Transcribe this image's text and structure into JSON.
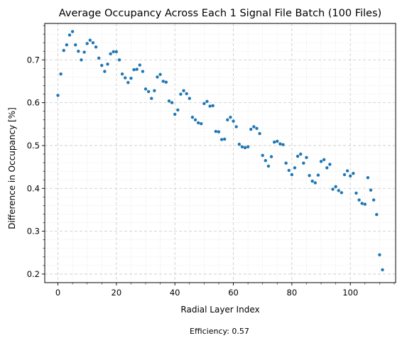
{
  "chart_data": {
    "type": "scatter",
    "title": "Average Occupancy Across Each 1 Signal File Batch (100 Files)",
    "xlabel": "Radial Layer Index",
    "ylabel": "Difference in Occupancy [%]",
    "annotation": "Efficiency: 0.57",
    "xlim": [
      -4.5,
      115.5
    ],
    "ylim": [
      0.18,
      0.785
    ],
    "xticks": [
      0,
      20,
      40,
      60,
      80,
      100
    ],
    "xtick_labels": [
      "0",
      "20",
      "40",
      "60",
      "80",
      "100"
    ],
    "yticks": [
      0.2,
      0.3,
      0.4,
      0.5,
      0.6,
      0.7
    ],
    "ytick_labels": [
      "0.2",
      "0.3",
      "0.4",
      "0.5",
      "0.6",
      "0.7"
    ],
    "grid": "major dashed, minor dotted",
    "marker_color": "#1f77b4",
    "x": [
      0,
      1,
      2,
      3,
      4,
      5,
      6,
      7,
      8,
      9,
      10,
      11,
      12,
      13,
      14,
      15,
      16,
      17,
      18,
      19,
      20,
      21,
      22,
      23,
      24,
      25,
      26,
      27,
      28,
      29,
      30,
      31,
      32,
      33,
      34,
      35,
      36,
      37,
      38,
      39,
      40,
      41,
      42,
      43,
      44,
      45,
      46,
      47,
      48,
      49,
      50,
      51,
      52,
      53,
      54,
      55,
      56,
      57,
      58,
      59,
      60,
      61,
      62,
      63,
      64,
      65,
      66,
      67,
      68,
      69,
      70,
      71,
      72,
      73,
      74,
      75,
      76,
      77,
      78,
      79,
      80,
      81,
      82,
      83,
      84,
      85,
      86,
      87,
      88,
      89,
      90,
      91,
      92,
      93,
      94,
      95,
      96,
      97,
      98,
      99,
      100,
      101,
      102,
      103,
      104,
      105,
      106,
      107,
      108,
      109,
      110,
      111
    ],
    "y": [
      0.617,
      0.667,
      0.722,
      0.735,
      0.758,
      0.766,
      0.735,
      0.72,
      0.7,
      0.718,
      0.738,
      0.746,
      0.74,
      0.73,
      0.704,
      0.687,
      0.673,
      0.69,
      0.714,
      0.719,
      0.719,
      0.7,
      0.667,
      0.658,
      0.647,
      0.657,
      0.677,
      0.678,
      0.688,
      0.673,
      0.632,
      0.626,
      0.61,
      0.628,
      0.66,
      0.666,
      0.65,
      0.648,
      0.604,
      0.6,
      0.573,
      0.583,
      0.62,
      0.628,
      0.621,
      0.61,
      0.566,
      0.56,
      0.553,
      0.551,
      0.598,
      0.603,
      0.592,
      0.593,
      0.533,
      0.532,
      0.514,
      0.515,
      0.56,
      0.566,
      0.557,
      0.544,
      0.503,
      0.497,
      0.495,
      0.497,
      0.538,
      0.544,
      0.54,
      0.528,
      0.477,
      0.465,
      0.452,
      0.474,
      0.508,
      0.51,
      0.504,
      0.502,
      0.459,
      0.442,
      0.432,
      0.448,
      0.475,
      0.48,
      0.459,
      0.472,
      0.43,
      0.417,
      0.413,
      0.431,
      0.463,
      0.467,
      0.448,
      0.456,
      0.398,
      0.404,
      0.395,
      0.39,
      0.432,
      0.441,
      0.429,
      0.435,
      0.389,
      0.373,
      0.365,
      0.363,
      0.425,
      0.396,
      0.373,
      0.339,
      0.245,
      0.21
    ]
  }
}
